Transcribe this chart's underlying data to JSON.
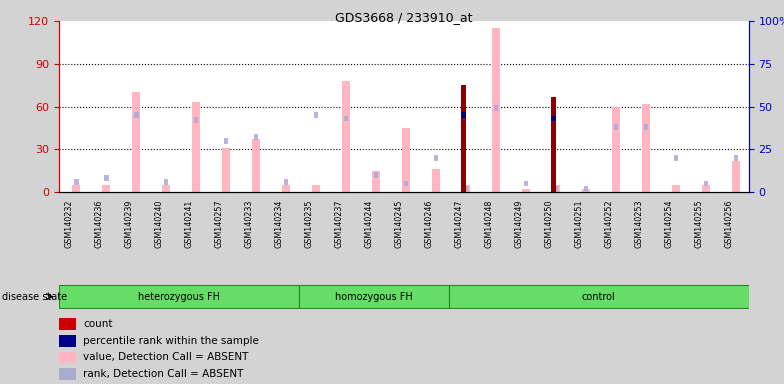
{
  "title": "GDS3668 / 233910_at",
  "samples": [
    "GSM140232",
    "GSM140236",
    "GSM140239",
    "GSM140240",
    "GSM140241",
    "GSM140257",
    "GSM140233",
    "GSM140234",
    "GSM140235",
    "GSM140237",
    "GSM140244",
    "GSM140245",
    "GSM140246",
    "GSM140247",
    "GSM140248",
    "GSM140249",
    "GSM140250",
    "GSM140251",
    "GSM140252",
    "GSM140253",
    "GSM140254",
    "GSM140255",
    "GSM140256"
  ],
  "groups": [
    {
      "label": "heterozygous FH",
      "start": 0,
      "end": 8
    },
    {
      "label": "homozygous FH",
      "start": 8,
      "end": 13
    },
    {
      "label": "control",
      "start": 13,
      "end": 23
    }
  ],
  "pink_bar_values": [
    5,
    5,
    70,
    5,
    63,
    31,
    37,
    5,
    5,
    78,
    15,
    45,
    16,
    5,
    115,
    2,
    5,
    2,
    60,
    62,
    5,
    5,
    22
  ],
  "light_blue_rank": [
    6,
    8,
    45,
    6,
    42,
    30,
    32,
    6,
    45,
    43,
    10,
    5,
    20,
    2,
    49,
    5,
    2,
    2,
    38,
    38,
    20,
    5,
    20
  ],
  "dark_red_count": [
    null,
    null,
    null,
    null,
    null,
    null,
    null,
    null,
    null,
    null,
    null,
    null,
    null,
    75,
    null,
    null,
    67,
    null,
    null,
    null,
    null,
    null,
    null
  ],
  "blue_percentile": [
    null,
    null,
    null,
    null,
    null,
    null,
    null,
    null,
    null,
    null,
    null,
    null,
    null,
    45,
    null,
    null,
    43,
    null,
    null,
    null,
    null,
    null,
    null
  ],
  "ylim_left": [
    0,
    120
  ],
  "ylim_right": [
    0,
    100
  ],
  "yticks_left": [
    0,
    30,
    60,
    90,
    120
  ],
  "yticks_right": [
    0,
    25,
    50,
    75,
    100
  ],
  "ytick_right_labels": [
    "0",
    "25",
    "50",
    "75",
    "100%"
  ],
  "ylabel_left_color": "#cc0000",
  "ylabel_right_color": "#0000cc",
  "background_color": "#d3d3d3",
  "dotted_grid_at": [
    30,
    60,
    90
  ],
  "legend_labels": [
    "count",
    "percentile rank within the sample",
    "value, Detection Call = ABSENT",
    "rank, Detection Call = ABSENT"
  ],
  "legend_colors": [
    "#cc0000",
    "#00008b",
    "#ffb6c1",
    "#aaaacc"
  ]
}
